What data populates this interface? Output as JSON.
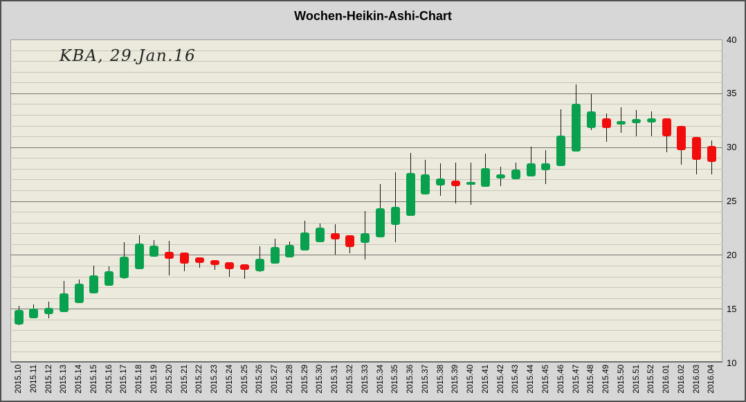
{
  "header": {
    "title": "Wochen-Heikin-Ashi-Chart"
  },
  "annotation": "KBA, 29.Jan.16",
  "chart_data": {
    "type": "candlestick",
    "subtype": "heikin-ashi-weekly",
    "title": "Wochen-Heikin-Ashi-Chart",
    "annotation": "KBA, 29.Jan.16",
    "legend": "none",
    "grid": "on",
    "y_axis": {
      "side": "right",
      "min": 10,
      "max": 40,
      "major_tick_step": 5,
      "minor_grid_step": 1,
      "tick_labels": [
        "40",
        "35",
        "30",
        "25",
        "20",
        "15",
        "10"
      ]
    },
    "x_axis": {
      "label_rotation_deg": -90
    },
    "colors": {
      "up_candle": "#0aa14e",
      "down_candle": "#f20d0d",
      "wick": "#111111",
      "plot_background": "#eceadd",
      "chart_background": "#d7d7d7",
      "grid_minor": "#c6c6b8",
      "grid_major": "#757570",
      "text": "#000000"
    },
    "candles": [
      {
        "week": "2015.10",
        "o": 13.5,
        "h": 15.3,
        "l": 13.5,
        "c": 14.9
      },
      {
        "week": "2015.11",
        "o": 14.1,
        "h": 15.4,
        "l": 14.1,
        "c": 15.0
      },
      {
        "week": "2015.12",
        "o": 14.5,
        "h": 15.65,
        "l": 14.1,
        "c": 15.1
      },
      {
        "week": "2015.13",
        "o": 14.7,
        "h": 17.6,
        "l": 14.7,
        "c": 16.45
      },
      {
        "week": "2015.14",
        "o": 15.55,
        "h": 17.7,
        "l": 15.55,
        "c": 17.3
      },
      {
        "week": "2015.15",
        "o": 16.4,
        "h": 19.0,
        "l": 16.4,
        "c": 18.1
      },
      {
        "week": "2015.16",
        "o": 17.15,
        "h": 18.95,
        "l": 17.15,
        "c": 18.5
      },
      {
        "week": "2015.17",
        "o": 17.8,
        "h": 21.2,
        "l": 17.8,
        "c": 19.8
      },
      {
        "week": "2015.18",
        "o": 18.7,
        "h": 21.8,
        "l": 18.7,
        "c": 21.05
      },
      {
        "week": "2015.19",
        "o": 19.8,
        "h": 21.4,
        "l": 19.8,
        "c": 20.85
      },
      {
        "week": "2015.20",
        "o": 20.3,
        "h": 21.3,
        "l": 18.1,
        "c": 19.65
      },
      {
        "week": "2015.21",
        "o": 20.2,
        "h": 20.2,
        "l": 18.45,
        "c": 19.15
      },
      {
        "week": "2015.22",
        "o": 19.75,
        "h": 19.75,
        "l": 18.8,
        "c": 19.25
      },
      {
        "week": "2015.23",
        "o": 19.5,
        "h": 19.5,
        "l": 18.6,
        "c": 19.05
      },
      {
        "week": "2015.24",
        "o": 19.35,
        "h": 19.35,
        "l": 18.0,
        "c": 18.7
      },
      {
        "week": "2015.25",
        "o": 19.15,
        "h": 19.15,
        "l": 17.8,
        "c": 18.6
      },
      {
        "week": "2015.26",
        "o": 18.45,
        "h": 20.8,
        "l": 18.4,
        "c": 19.65
      },
      {
        "week": "2015.27",
        "o": 19.2,
        "h": 21.5,
        "l": 19.2,
        "c": 20.7
      },
      {
        "week": "2015.28",
        "o": 19.75,
        "h": 21.25,
        "l": 19.75,
        "c": 20.9
      },
      {
        "week": "2015.29",
        "o": 20.4,
        "h": 23.2,
        "l": 20.4,
        "c": 22.1
      },
      {
        "week": "2015.30",
        "o": 21.15,
        "h": 22.9,
        "l": 21.15,
        "c": 22.55
      },
      {
        "week": "2015.31",
        "o": 22.0,
        "h": 22.85,
        "l": 20.0,
        "c": 21.45
      },
      {
        "week": "2015.32",
        "o": 21.8,
        "h": 21.8,
        "l": 20.15,
        "c": 20.75
      },
      {
        "week": "2015.33",
        "o": 21.1,
        "h": 24.05,
        "l": 19.6,
        "c": 22.0
      },
      {
        "week": "2015.34",
        "o": 21.6,
        "h": 26.6,
        "l": 21.6,
        "c": 24.3
      },
      {
        "week": "2015.35",
        "o": 22.8,
        "h": 27.7,
        "l": 21.2,
        "c": 24.45
      },
      {
        "week": "2015.36",
        "o": 23.6,
        "h": 29.45,
        "l": 23.6,
        "c": 27.6
      },
      {
        "week": "2015.37",
        "o": 25.6,
        "h": 28.85,
        "l": 25.6,
        "c": 27.5
      },
      {
        "week": "2015.38",
        "o": 26.45,
        "h": 28.5,
        "l": 25.5,
        "c": 27.1
      },
      {
        "week": "2015.39",
        "o": 26.9,
        "h": 28.6,
        "l": 24.8,
        "c": 26.35
      },
      {
        "week": "2015.40",
        "o": 26.5,
        "h": 28.6,
        "l": 24.65,
        "c": 26.75
      },
      {
        "week": "2015.41",
        "o": 26.35,
        "h": 29.4,
        "l": 26.35,
        "c": 28.05
      },
      {
        "week": "2015.42",
        "o": 27.1,
        "h": 28.2,
        "l": 26.4,
        "c": 27.45
      },
      {
        "week": "2015.43",
        "o": 27.0,
        "h": 28.6,
        "l": 27.0,
        "c": 27.95
      },
      {
        "week": "2015.44",
        "o": 27.3,
        "h": 30.05,
        "l": 27.25,
        "c": 28.5
      },
      {
        "week": "2015.45",
        "o": 27.85,
        "h": 29.7,
        "l": 26.55,
        "c": 28.5
      },
      {
        "week": "2015.46",
        "o": 28.25,
        "h": 33.5,
        "l": 28.25,
        "c": 31.1
      },
      {
        "week": "2015.47",
        "o": 29.6,
        "h": 35.8,
        "l": 29.6,
        "c": 34.0
      },
      {
        "week": "2015.48",
        "o": 31.75,
        "h": 34.9,
        "l": 31.6,
        "c": 33.3
      },
      {
        "week": "2015.49",
        "o": 32.65,
        "h": 33.1,
        "l": 30.5,
        "c": 31.8
      },
      {
        "week": "2015.50",
        "o": 32.1,
        "h": 33.7,
        "l": 31.35,
        "c": 32.4
      },
      {
        "week": "2015.51",
        "o": 32.2,
        "h": 33.45,
        "l": 31.0,
        "c": 32.6
      },
      {
        "week": "2015.52",
        "o": 32.3,
        "h": 33.3,
        "l": 31.0,
        "c": 32.7
      },
      {
        "week": "2016.01",
        "o": 32.65,
        "h": 32.65,
        "l": 29.55,
        "c": 31.0
      },
      {
        "week": "2016.02",
        "o": 31.95,
        "h": 31.95,
        "l": 28.4,
        "c": 29.7
      },
      {
        "week": "2016.03",
        "o": 30.95,
        "h": 30.95,
        "l": 27.5,
        "c": 28.8
      },
      {
        "week": "2016.04",
        "o": 30.1,
        "h": 30.65,
        "l": 27.5,
        "c": 28.6
      }
    ]
  }
}
